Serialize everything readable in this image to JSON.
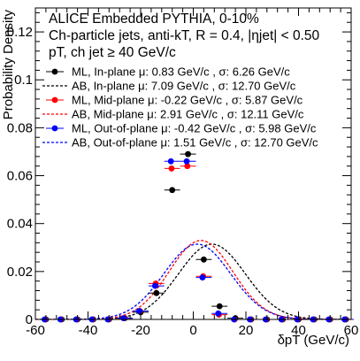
{
  "chart_data": {
    "type": "scatter",
    "info_lines": [
      "ALICE Embedded PYTHIA, 0-10%",
      "Ch-particle jets, anti-kT, R = 0.4, |ηjet| < 0.50",
      "pT, ch jet ≥ 40 GeV/c"
    ],
    "xlabel": "δpT (GeV/c)",
    "ylabel": "Probability Density",
    "xlim": [
      -60,
      60
    ],
    "ylim": [
      0,
      0.13
    ],
    "x_ticks": [
      -60,
      -40,
      -20,
      0,
      20,
      40,
      60
    ],
    "y_ticks": [
      0,
      0.02,
      0.04,
      0.06,
      0.08,
      0.1,
      0.12
    ],
    "y_tick_labels": [
      "0",
      "0.02",
      "0.04",
      "0.06",
      "0.08",
      "0.1",
      "0.12"
    ],
    "legend_position": "top-right",
    "grid": false,
    "bin_centers": [
      -56,
      -50,
      -44,
      -38,
      -32,
      -26,
      -20,
      -14,
      -8,
      -2,
      4,
      10,
      16,
      22,
      28,
      34,
      40,
      46,
      52,
      58
    ],
    "series": [
      {
        "name": "ML, In-plane μ: 0.83 GeV/c , σ: 6.26 GeV/c",
        "kind": "points",
        "color": "#000000",
        "x_offset": 0,
        "y": [
          0,
          0,
          0,
          0,
          0,
          0.0005,
          0.003,
          0.011,
          0.054,
          0.069,
          0.025,
          0.0055,
          0.0005,
          0,
          0,
          0,
          0,
          0,
          0,
          0
        ]
      },
      {
        "name": "AB, In-plane μ: 7.09 GeV/c , σ: 12.70 GeV/c",
        "kind": "line",
        "color": "#000000",
        "dashed": true,
        "mean": 7.09,
        "sigma": 12.7
      },
      {
        "name": "ML, Mid-plane μ: -0.22 GeV/c , σ: 5.87 GeV/c",
        "kind": "points",
        "color": "#ff0000",
        "x_offset": -1,
        "y": [
          0,
          0,
          0,
          0,
          0,
          0.0005,
          0.0035,
          0.015,
          0.063,
          0.064,
          0.018,
          0.002,
          0,
          0,
          0,
          0,
          0,
          0,
          0,
          0
        ]
      },
      {
        "name": "AB, Mid-plane μ: 2.91 GeV/c , σ: 12.11 GeV/c",
        "kind": "line",
        "color": "#ff0000",
        "dashed": true,
        "mean": 2.91,
        "sigma": 12.11
      },
      {
        "name": "ML, Out-of-plane μ: -0.42 GeV/c , σ: 5.98 GeV/c",
        "kind": "points",
        "color": "#0000ff",
        "x_offset": -2,
        "y": [
          0,
          0,
          0,
          0,
          0,
          0.0005,
          0.0035,
          0.014,
          0.066,
          0.066,
          0.0175,
          0.0025,
          0,
          0,
          0,
          0,
          0,
          0,
          0,
          0
        ]
      },
      {
        "name": "AB, Out-of-plane μ: 1.51 GeV/c , σ: 12.70 GeV/c",
        "kind": "line",
        "color": "#0000ff",
        "dashed": true,
        "mean": 1.51,
        "sigma": 12.7
      }
    ]
  }
}
